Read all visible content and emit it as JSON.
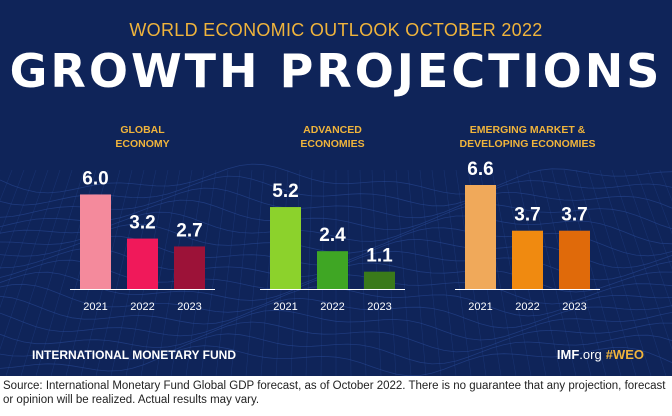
{
  "header": {
    "supertitle": "WORLD ECONOMIC OUTLOOK OCTOBER 2022",
    "title": "GROWTH PROJECTIONS"
  },
  "colors": {
    "background": "#0f2459",
    "accent_yellow": "#f0b43c"
  },
  "chart_data": [
    {
      "type": "bar",
      "title_lines": [
        "GLOBAL",
        "ECONOMY"
      ],
      "categories": [
        "2021",
        "2022",
        "2023"
      ],
      "values": [
        6.0,
        3.2,
        2.7
      ],
      "labels": [
        "6.0",
        "3.2",
        "2.7"
      ],
      "colors": [
        "#f48a9c",
        "#f0195a",
        "#9c1238"
      ],
      "ylim": [
        0,
        6.6
      ]
    },
    {
      "type": "bar",
      "title_lines": [
        "ADVANCED",
        "ECONOMIES"
      ],
      "categories": [
        "2021",
        "2022",
        "2023"
      ],
      "values": [
        5.2,
        2.4,
        1.1
      ],
      "labels": [
        "5.2",
        "2.4",
        "1.1"
      ],
      "colors": [
        "#8cd22c",
        "#3fa624",
        "#3a7a1a"
      ],
      "ylim": [
        0,
        6.6
      ]
    },
    {
      "type": "bar",
      "title_lines": [
        "EMERGING MARKET &",
        "DEVELOPING ECONOMIES"
      ],
      "categories": [
        "2021",
        "2022",
        "2023"
      ],
      "values": [
        6.6,
        3.7,
        3.7
      ],
      "labels": [
        "6.6",
        "3.7",
        "3.7"
      ],
      "colors": [
        "#f0a95a",
        "#f08a10",
        "#e06a0a"
      ],
      "ylim": [
        0,
        6.6
      ]
    }
  ],
  "footer": {
    "org_name": "INTERNATIONAL MONETARY FUND",
    "site_bold": "IMF",
    "site_suffix": ".org",
    "hashtag": "#WEO"
  },
  "source_note": "Source: International Monetary Fund Global GDP forecast, as of October 2022. There is no guarantee that any projection, forecast or opinion will be realized. Actual results may vary."
}
